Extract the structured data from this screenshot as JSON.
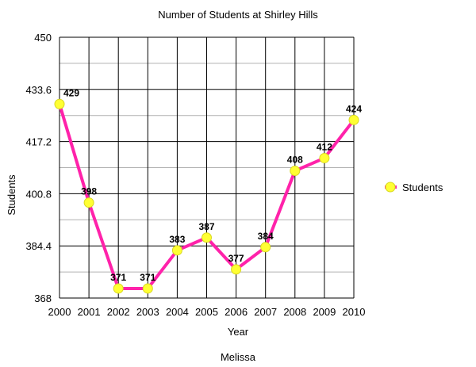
{
  "chart_data": {
    "type": "line",
    "title": "Number of Students at Shirley Hills",
    "xlabel": "Year",
    "ylabel": "Students",
    "caption": "Melissa",
    "x": [
      "2000",
      "2001",
      "2002",
      "2003",
      "2004",
      "2005",
      "2006",
      "2007",
      "2008",
      "2009",
      "2010"
    ],
    "series": [
      {
        "name": "Students",
        "values": [
          429,
          398,
          371,
          371,
          383,
          387,
          377,
          384,
          408,
          412,
          424
        ],
        "data_labels": [
          "429",
          "398",
          "371",
          "371",
          "383",
          "387",
          "377",
          "384",
          "408",
          "412",
          "424"
        ]
      }
    ],
    "ylim": [
      368,
      450
    ],
    "yticks": [
      "368",
      "384.4",
      "400.8",
      "417.2",
      "433.6",
      "450"
    ],
    "grid": true,
    "legend_position": "right",
    "colors": {
      "line": "#ff22aa",
      "marker": "#ffff33",
      "grid_major": "#000000",
      "grid_minor": "#b0b0b0"
    }
  }
}
